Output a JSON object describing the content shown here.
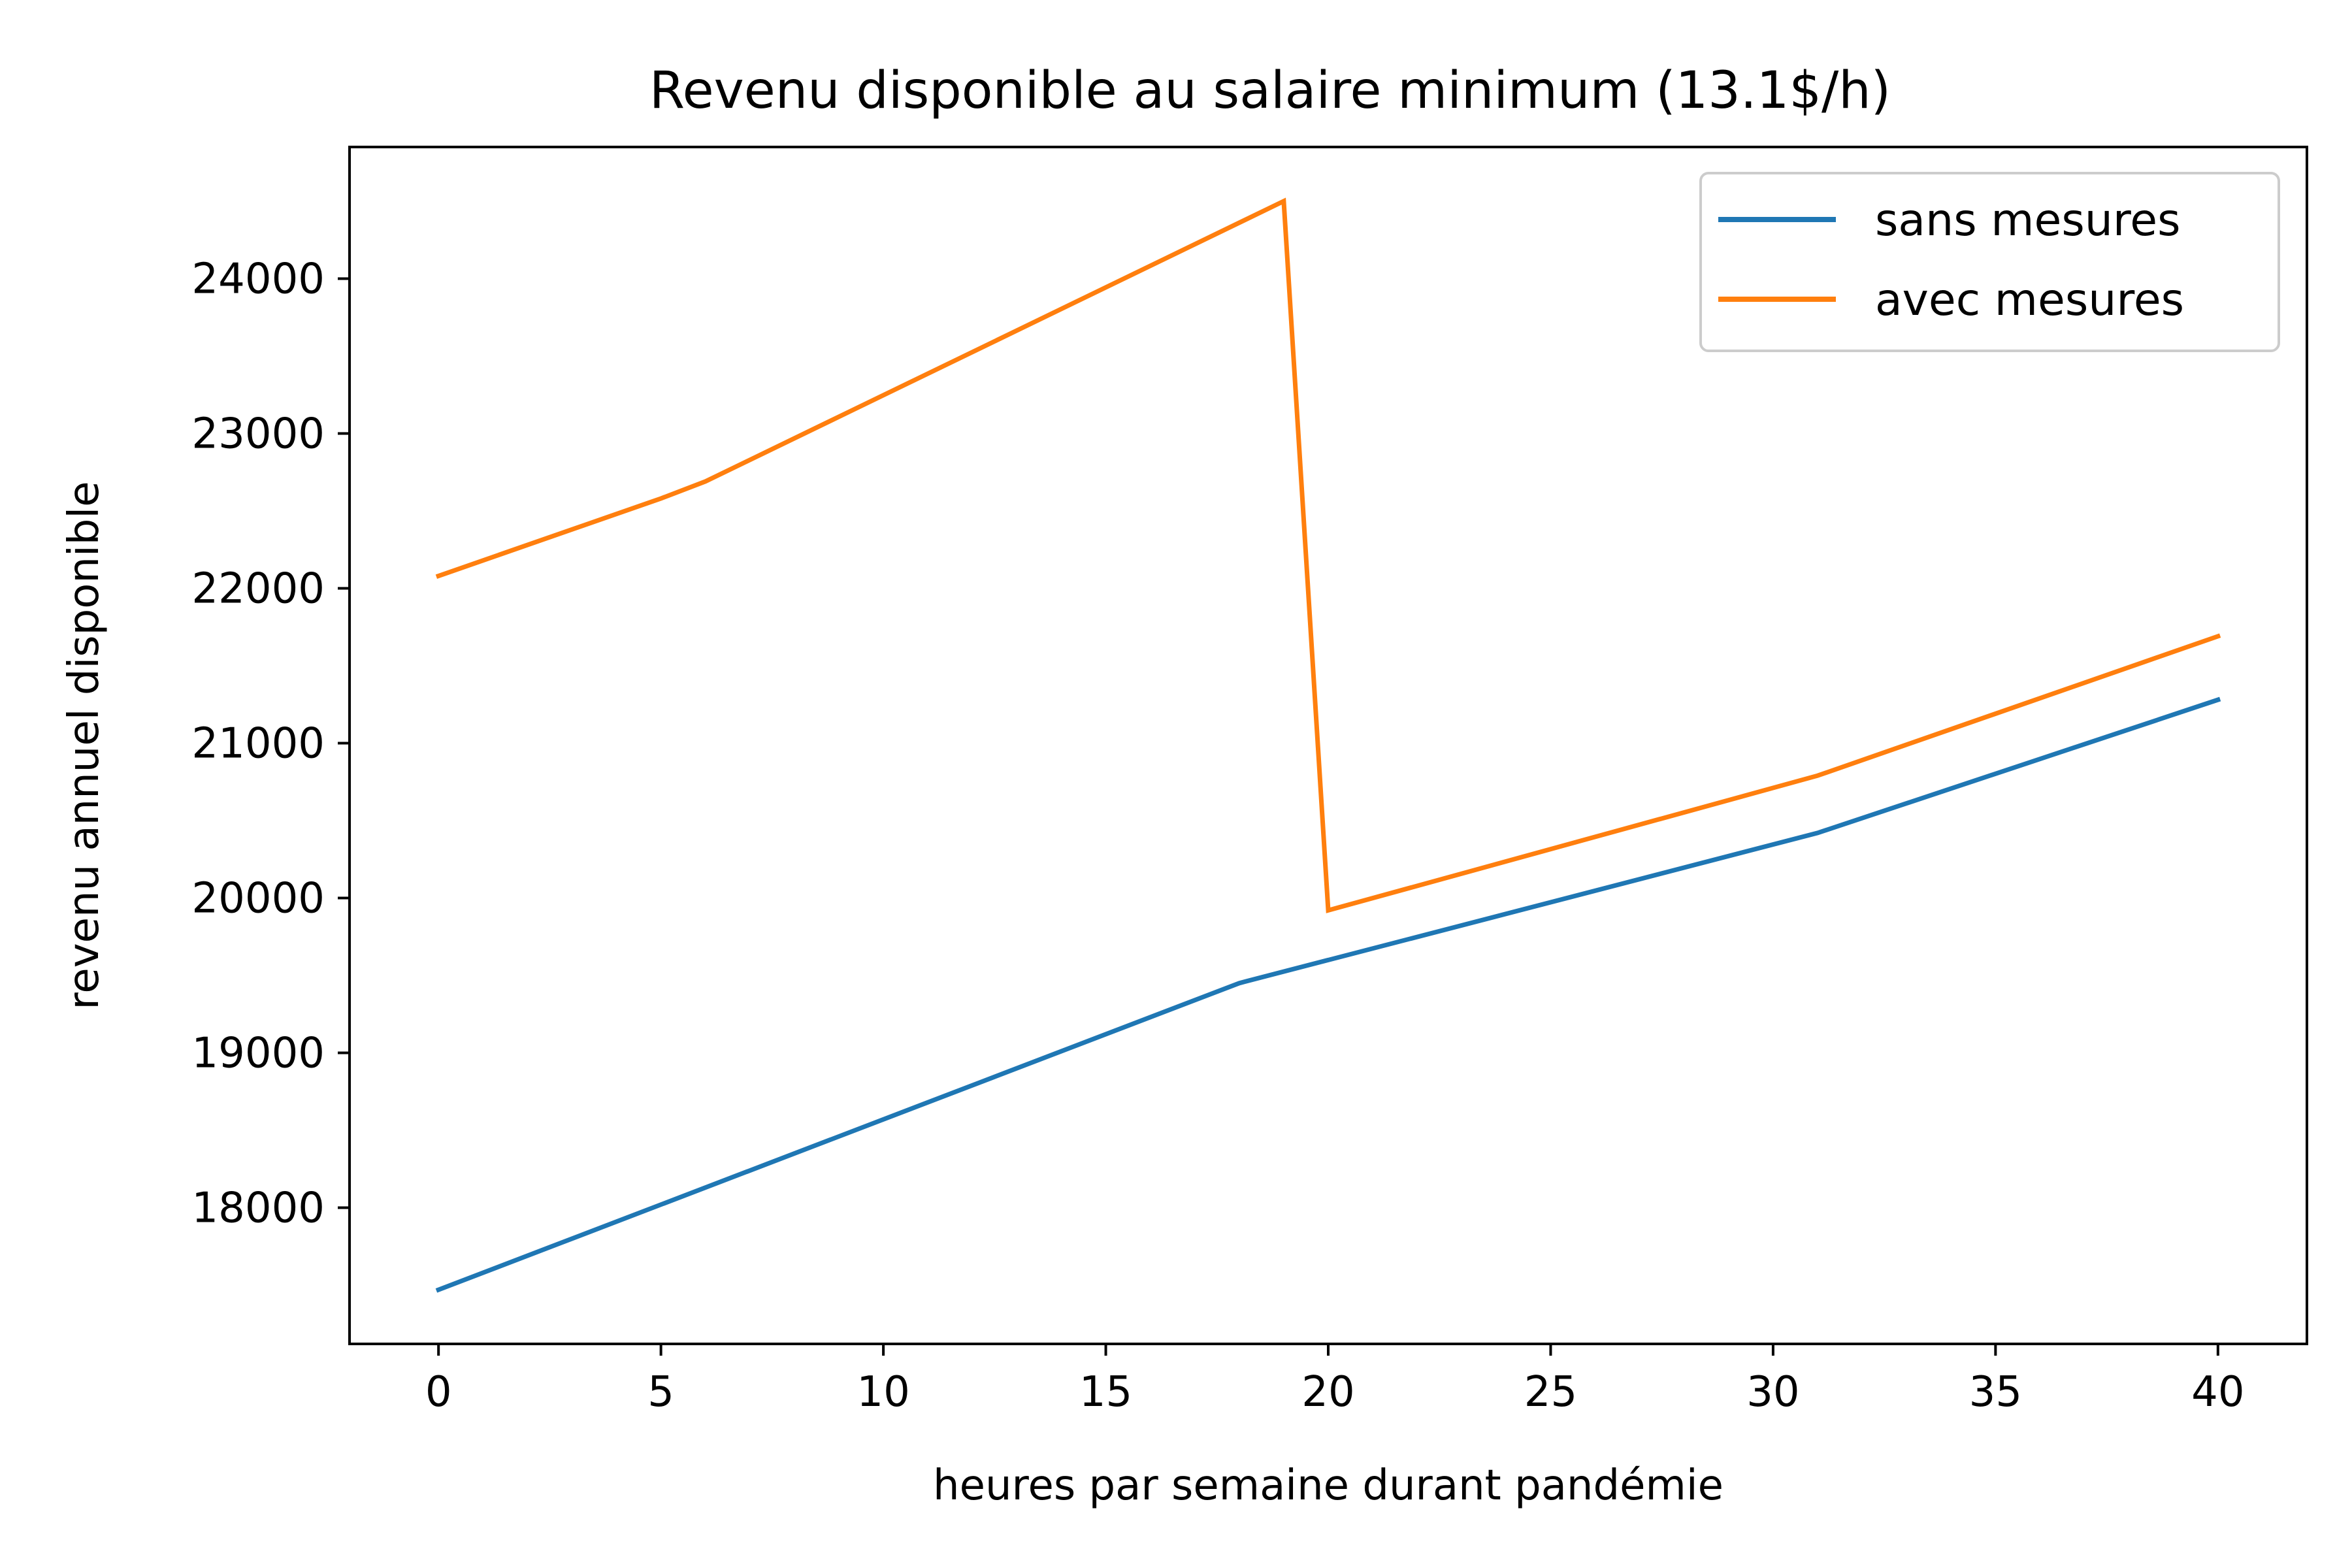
{
  "chart_data": {
    "type": "line",
    "title": "Revenu disponible au salaire minimum (13.1$/h)",
    "xlabel": "heures par semaine durant pandémie",
    "ylabel": "revenu annuel disponible",
    "xlim": [
      -2,
      42
    ],
    "ylim": [
      17120,
      24850
    ],
    "x_ticks": [
      0,
      5,
      10,
      15,
      20,
      25,
      30,
      35,
      40
    ],
    "y_ticks": [
      18000,
      19000,
      20000,
      21000,
      22000,
      23000,
      24000
    ],
    "grid": false,
    "legend_position": "top-right",
    "series": [
      {
        "name": "sans mesures",
        "color": "#1f77b4",
        "x": [
          0,
          18,
          31,
          40
        ],
        "y": [
          17470,
          19450,
          20420,
          21280
        ]
      },
      {
        "name": "avec mesures",
        "color": "#ff7f0e",
        "x": [
          0,
          5,
          6,
          19,
          20,
          31,
          40
        ],
        "y": [
          22080,
          22580,
          22690,
          24500,
          19920,
          20790,
          21690
        ]
      }
    ]
  }
}
